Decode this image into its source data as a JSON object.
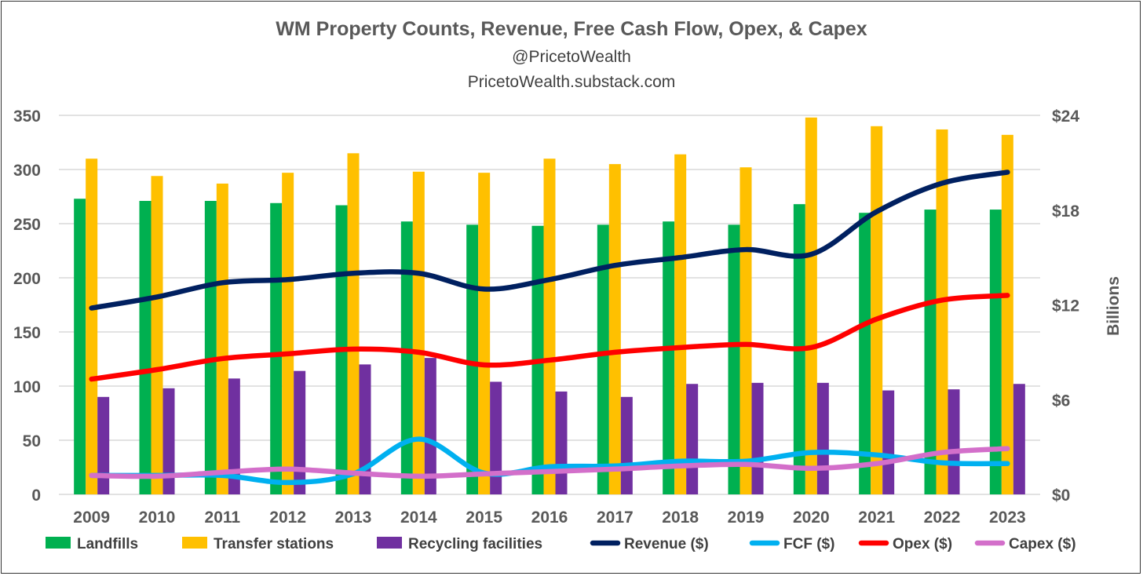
{
  "chart_data": {
    "type": "bar+line",
    "title": "WM Property Counts, Revenue, Free Cash Flow, Opex, & Capex",
    "subtitle1": "@PricetoWealth",
    "subtitle2": "PricetoWealth.substack.com",
    "categories": [
      "2009",
      "2010",
      "2011",
      "2012",
      "2013",
      "2014",
      "2015",
      "2016",
      "2017",
      "2018",
      "2019",
      "2020",
      "2021",
      "2022",
      "2023"
    ],
    "y_left": {
      "ylim": [
        0,
        350
      ],
      "ticks": [
        "0",
        "50",
        "100",
        "150",
        "200",
        "250",
        "300",
        "350"
      ],
      "tick_values": [
        0,
        50,
        100,
        150,
        200,
        250,
        300,
        350
      ]
    },
    "y_right": {
      "ylim": [
        0,
        24
      ],
      "label": "Billions",
      "ticks": [
        "$0",
        "$6",
        "$12",
        "$18",
        "$24"
      ],
      "tick_values": [
        0,
        6,
        12,
        18,
        24
      ]
    },
    "grid": true,
    "legend_position": "bottom",
    "bar_series": [
      {
        "name": "Landfills",
        "color": "#00B050",
        "values": [
          273,
          271,
          271,
          269,
          267,
          252,
          249,
          248,
          249,
          252,
          249,
          268,
          260,
          263,
          263
        ]
      },
      {
        "name": "Transfer stations",
        "color": "#FFC000",
        "values": [
          310,
          294,
          287,
          297,
          315,
          298,
          297,
          310,
          305,
          314,
          302,
          348,
          340,
          337,
          332
        ]
      },
      {
        "name": "Recycling facilities",
        "color": "#7030A0",
        "values": [
          90,
          98,
          107,
          114,
          120,
          126,
          104,
          95,
          90,
          102,
          103,
          103,
          96,
          97,
          102
        ]
      }
    ],
    "line_series": [
      {
        "name": "Revenue ($)",
        "color": "#002060",
        "values": [
          11.8,
          12.5,
          13.4,
          13.6,
          14.0,
          14.0,
          13.0,
          13.6,
          14.5,
          15.0,
          15.5,
          15.2,
          17.9,
          19.7,
          20.4
        ]
      },
      {
        "name": "FCF ($)",
        "color": "#00B0F0",
        "values": [
          1.2,
          1.2,
          1.2,
          0.75,
          1.3,
          3.5,
          1.35,
          1.75,
          1.8,
          2.1,
          2.1,
          2.65,
          2.5,
          2.0,
          1.95
        ]
      },
      {
        "name": "Opex ($)",
        "color": "#FF0000",
        "values": [
          7.3,
          7.9,
          8.6,
          8.9,
          9.2,
          9.0,
          8.2,
          8.5,
          9.0,
          9.3,
          9.5,
          9.3,
          11.1,
          12.3,
          12.6
        ]
      },
      {
        "name": "Capex ($)",
        "color": "#D36FCA",
        "values": [
          1.2,
          1.15,
          1.4,
          1.6,
          1.35,
          1.15,
          1.3,
          1.45,
          1.6,
          1.8,
          1.9,
          1.65,
          1.95,
          2.65,
          2.9
        ]
      }
    ],
    "legend_order": [
      "Landfills",
      "Transfer stations",
      "Recycling facilities",
      "Revenue ($)",
      "FCF ($)",
      "Opex ($)",
      "Capex ($)"
    ]
  }
}
